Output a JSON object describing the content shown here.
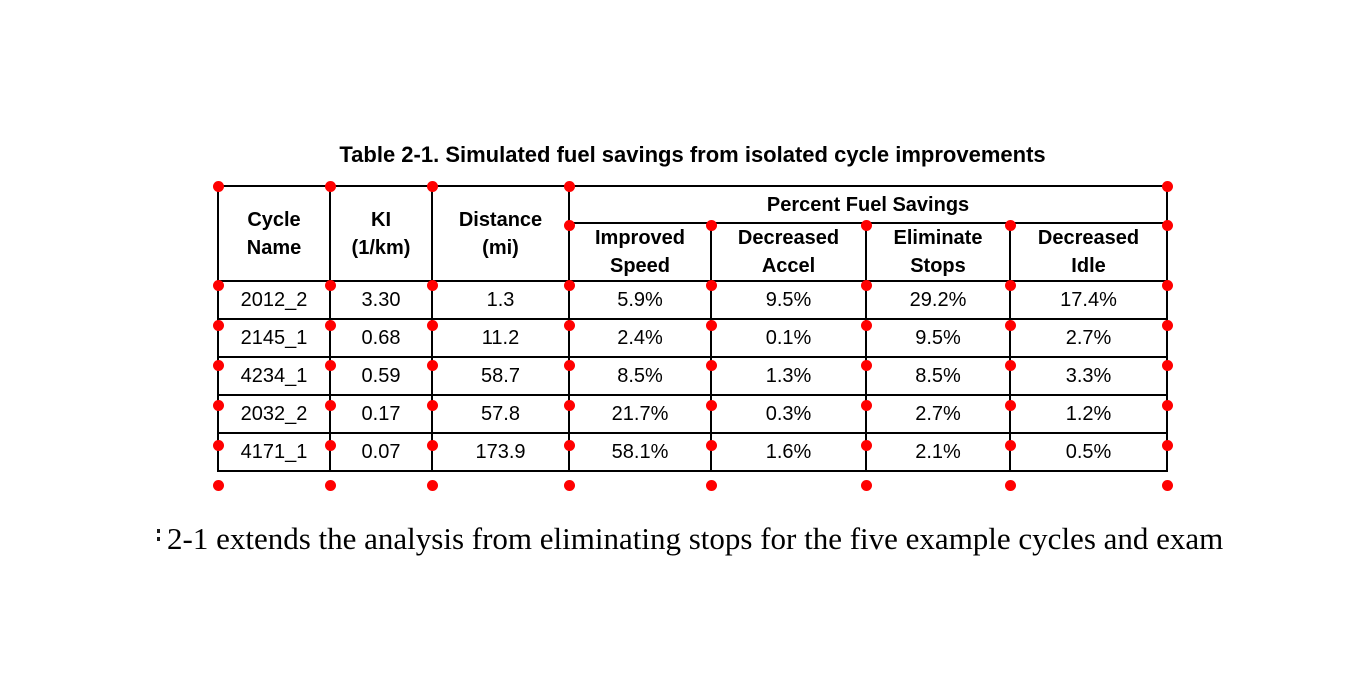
{
  "annotations": {
    "dot_color": "#ff0000"
  },
  "table": {
    "title": "Table 2-1. Simulated fuel savings from isolated cycle improvements",
    "headers": {
      "cycle_name": "Cycle\nName",
      "ki": "KI\n(1/km)",
      "distance": "Distance\n(mi)",
      "group": "Percent Fuel Savings",
      "sub": [
        "Improved\nSpeed",
        "Decreased\nAccel",
        "Eliminate\nStops",
        "Decreased\nIdle"
      ]
    },
    "rows": [
      [
        "2012_2",
        "3.30",
        "1.3",
        "5.9%",
        "9.5%",
        "29.2%",
        "17.4%"
      ],
      [
        "2145_1",
        "0.68",
        "11.2",
        "2.4%",
        "0.1%",
        "9.5%",
        "2.7%"
      ],
      [
        "4234_1",
        "0.59",
        "58.7",
        "8.5%",
        "1.3%",
        "8.5%",
        "3.3%"
      ],
      [
        "2032_2",
        "0.17",
        "57.8",
        "21.7%",
        "0.3%",
        "2.7%",
        "1.2%"
      ],
      [
        "4171_1",
        "0.07",
        "173.9",
        "58.1%",
        "1.6%",
        "2.1%",
        "0.5%"
      ]
    ]
  },
  "body_text": {
    "sentence": "2-1 extends the analysis from eliminating stops for the five example cycles and exam"
  }
}
